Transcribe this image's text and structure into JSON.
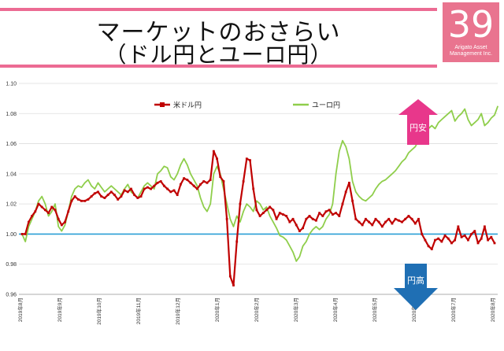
{
  "header": {
    "title_line1": "マーケットのおさらい",
    "title_line2": "（ドル円とユーロ円）",
    "accent_color": "#ec6b93"
  },
  "logo": {
    "number": "39",
    "line1": "Arigato Asset",
    "line2": "Management Inc.",
    "color": "#e9748f"
  },
  "chart_data": {
    "type": "line",
    "ylim": [
      0.96,
      1.1
    ],
    "yticks": [
      "0.96",
      "0.98",
      "1.00",
      "1.02",
      "1.04",
      "1.06",
      "1.08",
      "1.10"
    ],
    "ytick_values": [
      0.96,
      0.98,
      1.0,
      1.02,
      1.04,
      1.06,
      1.08,
      1.1
    ],
    "xticks": [
      "2019年8月",
      "2019年9月",
      "2019年10月",
      "2019年11月",
      "2019年12月",
      "2020年1月",
      "2020年2月",
      "2020年3月",
      "2020年4月",
      "2020年5月",
      "2020年6月",
      "2020年7月",
      "2020年8月"
    ],
    "grid": true,
    "baseline": 1.0,
    "baseline_color": "#2a9fd6",
    "legend_position": "top-center",
    "series": [
      {
        "name": "米ドル円",
        "color": "#c00000",
        "marker": "square",
        "values": [
          1.0,
          1.0,
          1.008,
          1.012,
          1.015,
          1.02,
          1.018,
          1.016,
          1.014,
          1.018,
          1.016,
          1.01,
          1.006,
          1.008,
          1.015,
          1.022,
          1.025,
          1.023,
          1.022,
          1.022,
          1.023,
          1.025,
          1.027,
          1.028,
          1.025,
          1.024,
          1.026,
          1.028,
          1.026,
          1.023,
          1.025,
          1.029,
          1.028,
          1.03,
          1.026,
          1.024,
          1.025,
          1.03,
          1.031,
          1.03,
          1.032,
          1.034,
          1.035,
          1.032,
          1.03,
          1.028,
          1.029,
          1.026,
          1.033,
          1.037,
          1.036,
          1.034,
          1.032,
          1.03,
          1.033,
          1.035,
          1.034,
          1.036,
          1.055,
          1.05,
          1.038,
          1.035,
          1.01,
          0.972,
          0.966,
          0.995,
          1.02,
          1.035,
          1.05,
          1.049,
          1.03,
          1.016,
          1.012,
          1.014,
          1.016,
          1.018,
          1.016,
          1.01,
          1.014,
          1.013,
          1.012,
          1.008,
          1.01,
          1.006,
          1.002,
          1.004,
          1.01,
          1.012,
          1.01,
          1.009,
          1.014,
          1.012,
          1.015,
          1.016,
          1.013,
          1.014,
          1.012,
          1.02,
          1.028,
          1.034,
          1.022,
          1.01,
          1.008,
          1.006,
          1.01,
          1.008,
          1.006,
          1.01,
          1.008,
          1.005,
          1.008,
          1.01,
          1.007,
          1.01,
          1.009,
          1.008,
          1.01,
          1.012,
          1.01,
          1.007,
          1.01,
          1.0,
          0.996,
          0.992,
          0.99,
          0.996,
          0.997,
          0.995,
          0.999,
          0.997,
          0.994,
          0.996,
          1.005,
          0.998,
          0.999,
          0.996,
          1.0,
          1.002,
          0.994,
          0.997,
          1.005,
          0.996,
          0.998,
          0.994
        ]
      },
      {
        "name": "ユーロ円",
        "color": "#8fce4b",
        "marker": "none",
        "values": [
          1.0,
          0.995,
          1.005,
          1.01,
          1.015,
          1.022,
          1.025,
          1.02,
          1.012,
          1.015,
          1.02,
          1.005,
          1.002,
          1.006,
          1.015,
          1.025,
          1.03,
          1.032,
          1.031,
          1.034,
          1.036,
          1.032,
          1.03,
          1.034,
          1.031,
          1.028,
          1.03,
          1.032,
          1.03,
          1.028,
          1.026,
          1.03,
          1.033,
          1.028,
          1.026,
          1.024,
          1.028,
          1.032,
          1.034,
          1.032,
          1.03,
          1.04,
          1.042,
          1.045,
          1.044,
          1.038,
          1.036,
          1.04,
          1.046,
          1.05,
          1.046,
          1.04,
          1.036,
          1.032,
          1.024,
          1.018,
          1.015,
          1.02,
          1.04,
          1.045,
          1.04,
          1.03,
          1.02,
          1.01,
          1.005,
          1.012,
          1.008,
          1.015,
          1.02,
          1.018,
          1.015,
          1.022,
          1.02,
          1.016,
          1.018,
          1.012,
          1.008,
          1.004,
          0.999,
          0.998,
          0.996,
          0.992,
          0.988,
          0.982,
          0.985,
          0.992,
          0.995,
          1.0,
          1.003,
          1.005,
          1.003,
          1.005,
          1.01,
          1.013,
          1.02,
          1.04,
          1.055,
          1.062,
          1.058,
          1.05,
          1.035,
          1.028,
          1.025,
          1.023,
          1.022,
          1.024,
          1.026,
          1.03,
          1.033,
          1.035,
          1.036,
          1.038,
          1.04,
          1.042,
          1.045,
          1.048,
          1.05,
          1.054,
          1.056,
          1.058,
          1.062,
          1.064,
          1.066,
          1.07,
          1.072,
          1.07,
          1.074,
          1.076,
          1.078,
          1.08,
          1.082,
          1.075,
          1.078,
          1.08,
          1.083,
          1.076,
          1.072,
          1.074,
          1.076,
          1.08,
          1.072,
          1.074,
          1.077,
          1.079,
          1.085
        ]
      }
    ]
  },
  "annotations": {
    "up_arrow": {
      "label": "円安",
      "color": "#e8378b"
    },
    "down_arrow": {
      "label": "円高",
      "color": "#1f6fb4"
    }
  }
}
